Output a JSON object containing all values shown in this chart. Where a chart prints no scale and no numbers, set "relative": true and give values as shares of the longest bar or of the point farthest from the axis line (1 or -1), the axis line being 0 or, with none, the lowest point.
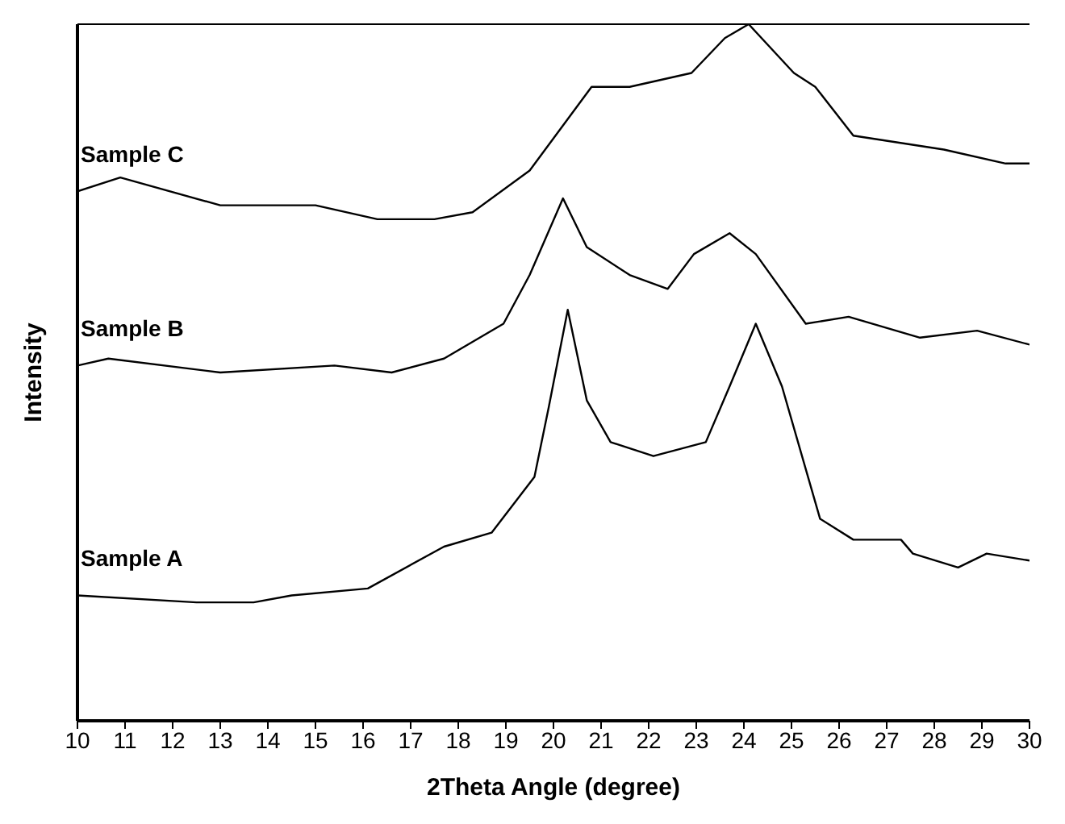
{
  "chart_data": {
    "type": "line",
    "xlabel": "2Theta Angle (degree)",
    "ylabel": "Intensity",
    "relative": true,
    "xlim": [
      10,
      30
    ],
    "xticks": [
      10,
      11,
      12,
      13,
      14,
      15,
      16,
      17,
      18,
      19,
      20,
      21,
      22,
      23,
      24,
      25,
      26,
      27,
      28,
      29,
      30
    ],
    "grid": false,
    "legend": false,
    "marker": "none",
    "line_style": "solid",
    "series": [
      {
        "name": "Sample C",
        "color": "#000000",
        "x": [
          10,
          10.9,
          13,
          15,
          16.3,
          17.5,
          18.3,
          19.5,
          20.8,
          21.6,
          22.9,
          23.6,
          24.1,
          25.05,
          25.5,
          26.3,
          28.2,
          29.5,
          30
        ],
        "values": [
          0.76,
          0.78,
          0.74,
          0.74,
          0.72,
          0.72,
          0.73,
          0.79,
          0.91,
          0.91,
          0.93,
          0.98,
          1,
          0.93,
          0.91,
          0.84,
          0.82,
          0.8,
          0.8
        ]
      },
      {
        "name": "Sample B",
        "color": "#000000",
        "x": [
          10,
          10.65,
          13,
          15.4,
          16.6,
          17.7,
          18.95,
          19.5,
          20.2,
          20.7,
          21.6,
          22.4,
          22.95,
          23.7,
          24.25,
          25.3,
          26.2,
          27.7,
          28.9,
          30
        ],
        "values": [
          0.51,
          0.52,
          0.5,
          0.51,
          0.5,
          0.52,
          0.57,
          0.64,
          0.75,
          0.68,
          0.64,
          0.62,
          0.67,
          0.7,
          0.67,
          0.57,
          0.58,
          0.55,
          0.56,
          0.54
        ]
      },
      {
        "name": "Sample A",
        "color": "#000000",
        "x": [
          10,
          12.5,
          13.7,
          14.5,
          16.1,
          17.7,
          18.7,
          19.6,
          19.9,
          20.3,
          20.7,
          21.2,
          22.1,
          23.2,
          23.7,
          24.25,
          24.8,
          25.6,
          26.3,
          27.3,
          27.55,
          28.5,
          29.1,
          30
        ],
        "values": [
          0.18,
          0.17,
          0.17,
          0.18,
          0.19,
          0.25,
          0.27,
          0.35,
          0.45,
          0.59,
          0.46,
          0.4,
          0.38,
          0.4,
          0.48,
          0.57,
          0.48,
          0.29,
          0.26,
          0.26,
          0.24,
          0.22,
          0.24,
          0.23
        ]
      }
    ]
  }
}
